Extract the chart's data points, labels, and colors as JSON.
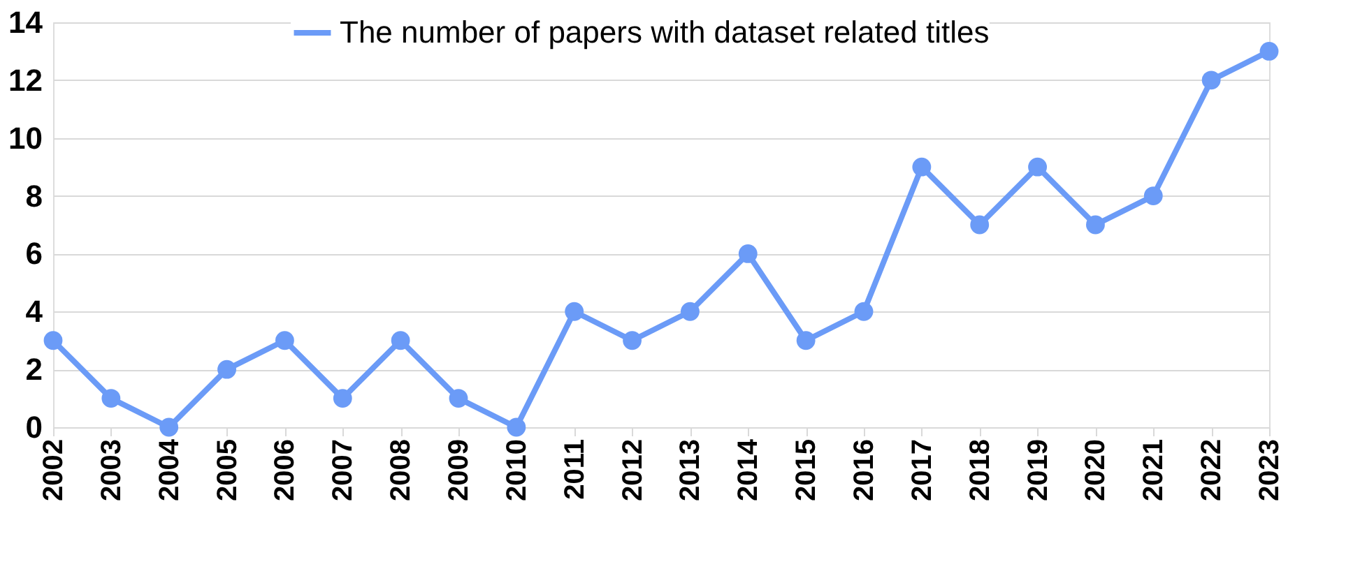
{
  "chart_data": {
    "type": "line",
    "categories": [
      "2002",
      "2003",
      "2004",
      "2005",
      "2006",
      "2007",
      "2008",
      "2009",
      "2010",
      "2011",
      "2012",
      "2013",
      "2014",
      "2015",
      "2016",
      "2017",
      "2018",
      "2019",
      "2020",
      "2021",
      "2022",
      "2023"
    ],
    "series": [
      {
        "name": "The number of papers with dataset related titles",
        "color": "#6b9bf7",
        "values": [
          3,
          1,
          0,
          2,
          3,
          1,
          3,
          1,
          0,
          4,
          3,
          4,
          6,
          3,
          4,
          9,
          7,
          9,
          7,
          8,
          12,
          13
        ]
      }
    ],
    "ylim": [
      0,
      14
    ],
    "yticks": [
      0,
      2,
      4,
      6,
      8,
      10,
      12,
      14
    ],
    "grid": "y",
    "legend": "top right",
    "marker": "circle",
    "line_style": "solid"
  }
}
